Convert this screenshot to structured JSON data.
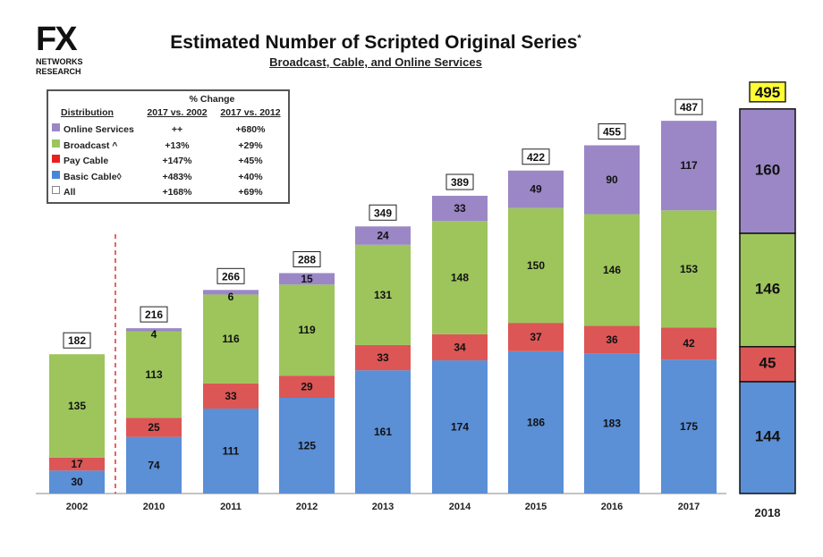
{
  "logo": {
    "brand": "FX",
    "line1": "NETWORKS",
    "line2": "RESEARCH"
  },
  "chart_data": {
    "type": "bar",
    "stacked": true,
    "title": "Estimated Number of Scripted Original Series",
    "title_mark": "*",
    "subtitle": "Broadcast, Cable, and Online Services",
    "categories": [
      "2002",
      "2010",
      "2011",
      "2012",
      "2013",
      "2014",
      "2015",
      "2016",
      "2017",
      "2018"
    ],
    "series": [
      {
        "name": "Basic Cable",
        "color": "#5b8fd6",
        "values": [
          30,
          74,
          111,
          125,
          161,
          174,
          186,
          183,
          175,
          144
        ]
      },
      {
        "name": "Pay Cable",
        "color": "#dc5656",
        "values": [
          17,
          25,
          33,
          29,
          33,
          34,
          37,
          36,
          42,
          45
        ]
      },
      {
        "name": "Broadcast",
        "color": "#9dc55c",
        "values": [
          135,
          113,
          116,
          119,
          131,
          148,
          150,
          146,
          153,
          146
        ]
      },
      {
        "name": "Online Services",
        "color": "#9b87c6",
        "values": [
          null,
          4,
          6,
          15,
          24,
          33,
          49,
          90,
          117,
          160
        ]
      }
    ],
    "totals": [
      182,
      216,
      266,
      288,
      349,
      389,
      422,
      455,
      487,
      495
    ],
    "highlight_category": "2018",
    "highlight_total_color": "#ffff33",
    "divider_after": "2002",
    "divider_color": "#e03030",
    "ylim": [
      0,
      500
    ],
    "grid": false,
    "legend_placement": "top-left",
    "legend_table": {
      "group_header": "% Change",
      "headers": [
        "Distribution",
        "2017 vs. 2002",
        "2017 vs. 2012"
      ],
      "rows": [
        {
          "label": "Online Services",
          "color": "#9b87c6",
          "c1": "++",
          "c2": "+680%"
        },
        {
          "label": "Broadcast ^",
          "color": "#9dc55c",
          "c1": "+13%",
          "c2": "+29%"
        },
        {
          "label": "Pay Cable",
          "color": "#e82020",
          "c1": "+147%",
          "c2": "+45%"
        },
        {
          "label": "Basic Cable◊",
          "color": "#4a86d8",
          "c1": "+483%",
          "c2": "+40%"
        },
        {
          "label": "All",
          "color": "#ffffff",
          "c1": "+168%",
          "c2": "+69%"
        }
      ]
    }
  }
}
